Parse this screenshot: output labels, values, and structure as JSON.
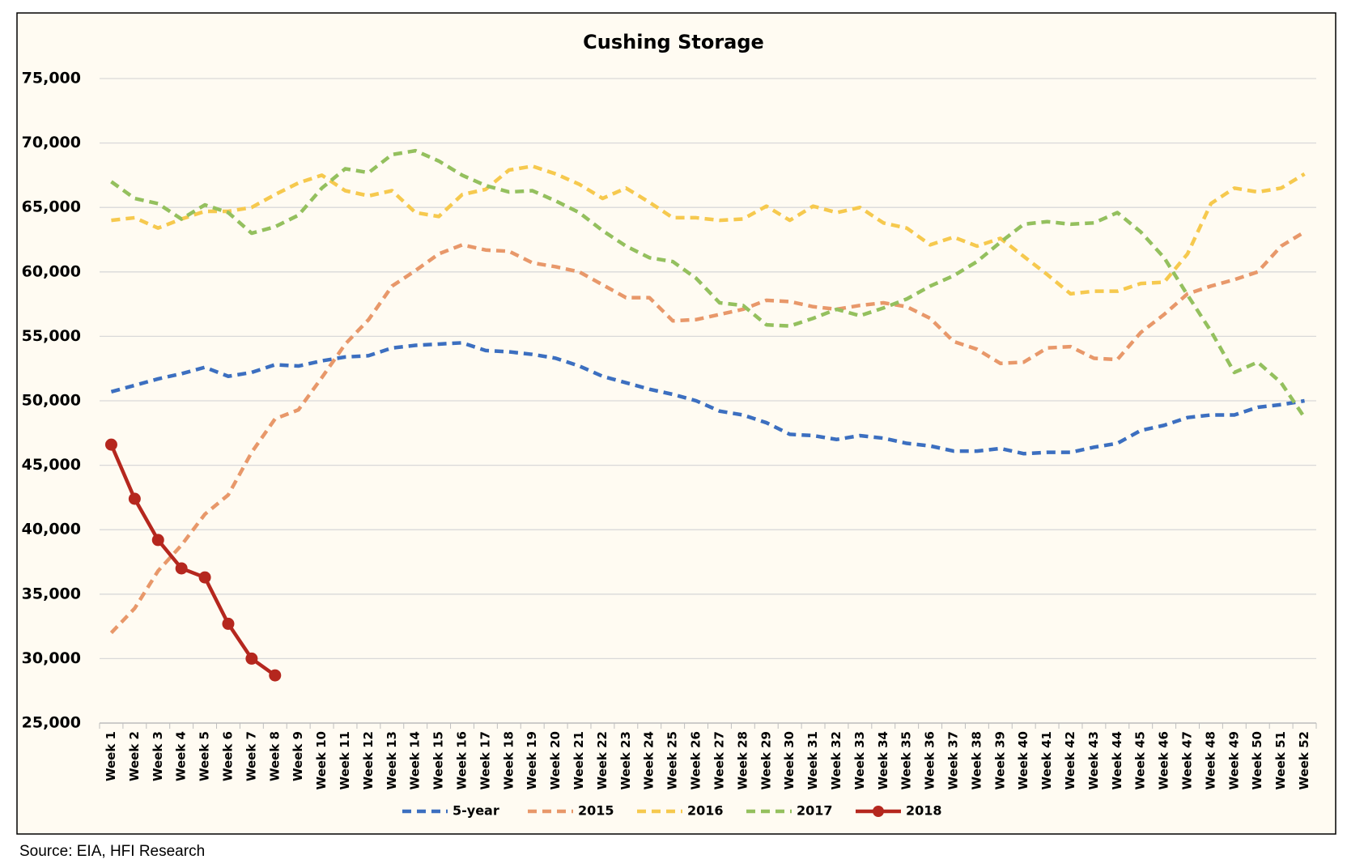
{
  "chart_data": {
    "type": "line",
    "title": "Cushing Storage",
    "categories": [
      "Week 1",
      "Week 2",
      "Week 3",
      "Week 4",
      "Week 5",
      "Week 6",
      "Week 7",
      "Week 8",
      "Week 9",
      "Week 10",
      "Week 11",
      "Week 12",
      "Week 13",
      "Week 14",
      "Week 15",
      "Week 16",
      "Week 17",
      "Week 18",
      "Week 19",
      "Week 20",
      "Week 21",
      "Week 22",
      "Week 23",
      "Week 24",
      "Week 25",
      "Week 26",
      "Week 27",
      "Week 28",
      "Week 29",
      "Week 30",
      "Week 31",
      "Week 32",
      "Week 33",
      "Week 34",
      "Week 35",
      "Week 36",
      "Week 37",
      "Week 38",
      "Week 39",
      "Week 40",
      "Week 41",
      "Week 42",
      "Week 43",
      "Week 44",
      "Week 45",
      "Week 46",
      "Week 47",
      "Week 48",
      "Week 49",
      "Week 50",
      "Week 51",
      "Week 52"
    ],
    "series": [
      {
        "name": "5-year",
        "color": "#3c6fc0",
        "dashed": true,
        "values": [
          50700,
          51200,
          51700,
          52100,
          52600,
          51900,
          52200,
          52800,
          52700,
          53100,
          53400,
          53500,
          54100,
          54300,
          54400,
          54500,
          53900,
          53800,
          53600,
          53300,
          52700,
          51900,
          51400,
          50900,
          50500,
          50000,
          49200,
          48900,
          48300,
          47400,
          47300,
          47000,
          47300,
          47100,
          46700,
          46500,
          46100,
          46100,
          46300,
          45900,
          46000,
          46000,
          46400,
          46700,
          47700,
          48100,
          48700,
          48900,
          48900,
          49500,
          49700,
          50000
        ]
      },
      {
        "name": "2015",
        "color": "#e8986a",
        "dashed": true,
        "values": [
          32000,
          33900,
          36800,
          38800,
          41200,
          42700,
          46000,
          48600,
          49300,
          51800,
          54400,
          56300,
          58900,
          60100,
          61400,
          62100,
          61700,
          61600,
          60700,
          60400,
          60000,
          59000,
          58000,
          58000,
          56200,
          56300,
          56700,
          57100,
          57800,
          57700,
          57300,
          57100,
          57400,
          57600,
          57300,
          56400,
          54600,
          54000,
          52900,
          53000,
          54100,
          54200,
          53300,
          53200,
          55300,
          56700,
          58300,
          58900,
          59400,
          60000,
          62000,
          63100
        ]
      },
      {
        "name": "2016",
        "color": "#f6c94e",
        "dashed": true,
        "values": [
          64000,
          64200,
          63400,
          64100,
          64700,
          64700,
          65000,
          66000,
          66900,
          67500,
          66300,
          65900,
          66300,
          64600,
          64300,
          66000,
          66400,
          67900,
          68200,
          67600,
          66800,
          65700,
          66500,
          65400,
          64200,
          64200,
          64000,
          64100,
          65100,
          64000,
          65100,
          64600,
          65000,
          63800,
          63400,
          62100,
          62700,
          62000,
          62600,
          61200,
          59800,
          58300,
          58500,
          58500,
          59100,
          59200,
          61400,
          65300,
          66500,
          66200,
          66500,
          67600
        ]
      },
      {
        "name": "2017",
        "color": "#94c05e",
        "dashed": true,
        "values": [
          67000,
          65700,
          65300,
          64100,
          65200,
          64600,
          63000,
          63500,
          64400,
          66500,
          68000,
          67700,
          69100,
          69400,
          68600,
          67500,
          66700,
          66200,
          66300,
          65500,
          64600,
          63200,
          62000,
          61100,
          60800,
          59500,
          57600,
          57400,
          55900,
          55800,
          56400,
          57100,
          56600,
          57200,
          57900,
          58900,
          59700,
          60800,
          62300,
          63700,
          63900,
          63700,
          63800,
          64600,
          63100,
          61100,
          58200,
          55400,
          52200,
          53000,
          51400,
          48700
        ]
      },
      {
        "name": "2018",
        "color": "#b5271e",
        "dashed": false,
        "markers": true,
        "values": [
          46600,
          42400,
          39200,
          37000,
          36300,
          32700,
          30000,
          28700,
          null,
          null,
          null,
          null,
          null,
          null,
          null,
          null,
          null,
          null,
          null,
          null,
          null,
          null,
          null,
          null,
          null,
          null,
          null,
          null,
          null,
          null,
          null,
          null,
          null,
          null,
          null,
          null,
          null,
          null,
          null,
          null,
          null,
          null,
          null,
          null,
          null,
          null,
          null,
          null,
          null,
          null,
          null,
          null
        ]
      }
    ],
    "ylim": [
      25000,
      75000
    ],
    "yticks": [
      {
        "value": 25000,
        "label": "25,000"
      },
      {
        "value": 30000,
        "label": "30,000"
      },
      {
        "value": 35000,
        "label": "35,000"
      },
      {
        "value": 40000,
        "label": "40,000"
      },
      {
        "value": 45000,
        "label": "45,000"
      },
      {
        "value": 50000,
        "label": "50,000"
      },
      {
        "value": 55000,
        "label": "55,000"
      },
      {
        "value": 60000,
        "label": "60,000"
      },
      {
        "value": 65000,
        "label": "65,000"
      },
      {
        "value": 70000,
        "label": "70,000"
      },
      {
        "value": 75000,
        "label": "75,000"
      }
    ],
    "grid": true,
    "legend": "bottom"
  },
  "source": "Source: EIA, HFI Research"
}
